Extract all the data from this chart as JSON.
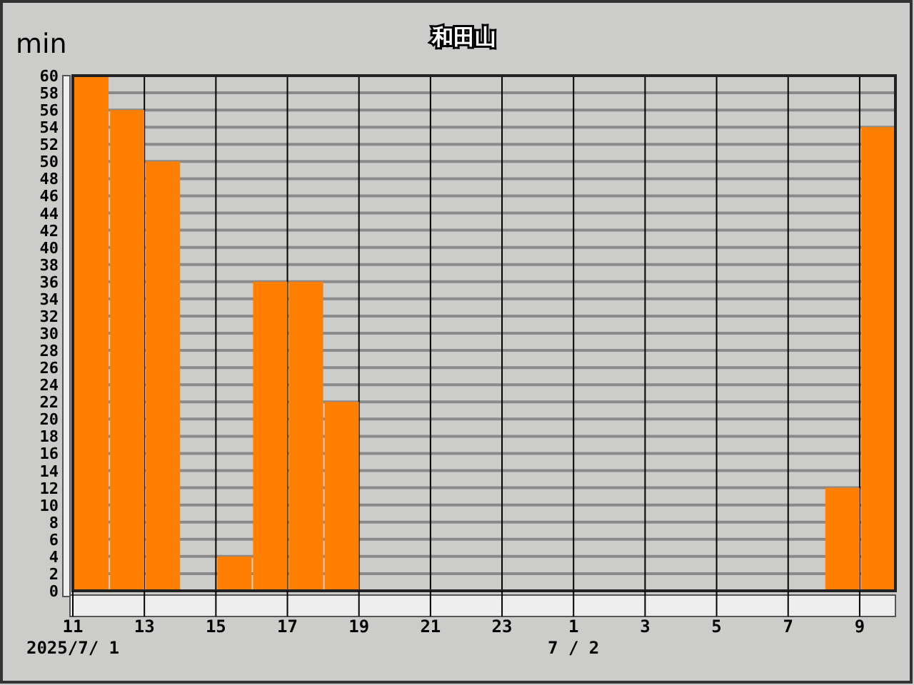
{
  "chart_data": {
    "type": "bar",
    "title": "和田山",
    "ylabel": "min",
    "x": [
      "2025-07-01T11:30",
      "2025-07-01T12:30",
      "2025-07-01T13:30",
      "2025-07-01T14:30",
      "2025-07-01T15:30",
      "2025-07-01T16:30",
      "2025-07-01T17:30",
      "2025-07-01T18:30",
      "2025-07-01T19:30",
      "2025-07-01T20:30",
      "2025-07-01T21:30",
      "2025-07-01T22:30",
      "2025-07-01T23:30",
      "2025-07-02T00:30",
      "2025-07-02T01:30",
      "2025-07-02T02:30",
      "2025-07-02T03:30",
      "2025-07-02T04:30",
      "2025-07-02T05:30",
      "2025-07-02T06:30",
      "2025-07-02T07:30",
      "2025-07-02T08:30",
      "2025-07-02T09:30"
    ],
    "values": [
      60,
      56,
      50,
      0,
      4,
      36,
      36,
      22,
      0,
      0,
      0,
      0,
      0,
      0,
      0,
      0,
      0,
      0,
      0,
      0,
      0,
      12,
      54
    ],
    "color": "#ff8000",
    "xlim": [
      "2025-07-01T11:00",
      "2025-07-02T10:00"
    ],
    "xticks": [
      {
        "value": "2025-07-01T11:00",
        "label": "11"
      },
      {
        "value": "2025-07-01T13:00",
        "label": "13"
      },
      {
        "value": "2025-07-01T15:00",
        "label": "15"
      },
      {
        "value": "2025-07-01T17:00",
        "label": "17"
      },
      {
        "value": "2025-07-01T19:00",
        "label": "19"
      },
      {
        "value": "2025-07-01T21:00",
        "label": "21"
      },
      {
        "value": "2025-07-01T23:00",
        "label": "23"
      },
      {
        "value": "2025-07-02T01:00",
        "label": "1"
      },
      {
        "value": "2025-07-02T03:00",
        "label": "3"
      },
      {
        "value": "2025-07-02T05:00",
        "label": "5"
      },
      {
        "value": "2025-07-02T07:00",
        "label": "7"
      },
      {
        "value": "2025-07-02T09:00",
        "label": "9"
      }
    ],
    "ylim": [
      0,
      60
    ],
    "yticks": [
      0,
      2,
      4,
      6,
      8,
      10,
      12,
      14,
      16,
      18,
      20,
      22,
      24,
      26,
      28,
      30,
      32,
      34,
      36,
      38,
      40,
      42,
      44,
      46,
      48,
      50,
      52,
      54,
      56,
      58,
      60
    ],
    "grid": true,
    "annotations": [
      "2025/7/ 1",
      "7 / 2"
    ]
  }
}
